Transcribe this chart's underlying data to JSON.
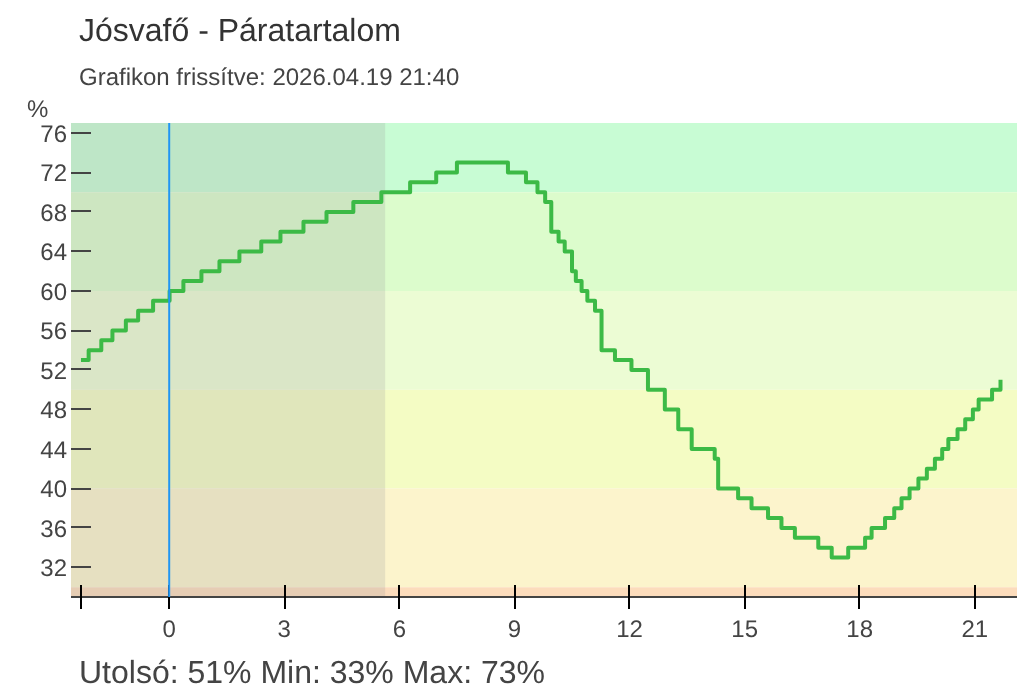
{
  "chart_data": {
    "type": "step",
    "title": "Jósvafő - Páratartalom",
    "subtitle": "Grafikon frissítve: 2026.04.19 21:40",
    "ylabel": "%",
    "annotations": [
      "Utolsó: 51%   Min: 33%   Max: 73%"
    ],
    "x": [
      -2.3,
      -2.1,
      -1.77,
      -1.48,
      -1.13,
      -0.81,
      -0.42,
      0.01,
      0.37,
      0.84,
      1.31,
      1.83,
      2.4,
      2.9,
      3.5,
      4.1,
      4.8,
      5.53,
      6.28,
      6.96,
      7.5,
      8.83,
      9.3,
      9.6,
      9.8,
      9.96,
      10.15,
      10.31,
      10.5,
      10.6,
      10.75,
      10.9,
      11.1,
      11.27,
      11.62,
      12.05,
      12.48,
      12.92,
      13.27,
      13.62,
      14.22,
      14.31,
      14.83,
      15.18,
      15.61,
      15.96,
      16.31,
      16.92,
      17.27,
      17.7,
      18.14,
      18.31,
      18.66,
      18.9,
      19.09,
      19.3,
      19.53,
      19.75,
      19.96,
      20.15,
      20.31,
      20.55,
      20.75,
      20.95,
      21.1,
      21.45,
      21.67
    ],
    "series": [
      {
        "color": "#3cba46",
        "values": [
          53,
          54,
          55,
          56,
          57,
          58,
          59,
          60,
          61,
          62,
          63,
          64,
          65,
          66,
          67,
          68,
          69,
          70,
          71,
          72,
          73,
          72,
          71,
          70,
          69,
          66,
          65,
          64,
          62,
          61,
          60,
          59,
          58,
          54,
          53,
          52,
          50,
          48,
          46,
          44,
          43,
          40,
          39,
          38,
          37,
          36,
          35,
          34,
          33,
          34,
          35,
          36,
          37,
          38,
          39,
          40,
          41,
          42,
          43,
          44,
          45,
          46,
          47,
          48,
          49,
          50,
          51
        ]
      }
    ],
    "xlim": [
      -2.56,
      22.1
    ],
    "ylim": [
      29,
      77
    ],
    "xticks": [
      {
        "value": -2.3,
        "label": null
      },
      0,
      3,
      6,
      9,
      12,
      15,
      18,
      21
    ],
    "yticks": [
      32,
      36,
      40,
      44,
      48,
      52,
      56,
      60,
      64,
      68,
      72,
      76
    ],
    "grid": false,
    "marker": "none",
    "line_style": "solid",
    "ref_lines": [
      {
        "axis": "x",
        "value": 0,
        "color": "#2196f3"
      }
    ],
    "bands": [
      {
        "axis": "y",
        "from": 70,
        "to": 77,
        "color": "#c8fcd4"
      },
      {
        "axis": "y",
        "from": 60,
        "to": 70,
        "color": "#dcfccc"
      },
      {
        "axis": "y",
        "from": 50,
        "to": 60,
        "color": "#ecfcd4"
      },
      {
        "axis": "y",
        "from": 40,
        "to": 50,
        "color": "#f4fcc4"
      },
      {
        "axis": "y",
        "from": 30,
        "to": 40,
        "color": "#fcf4cc"
      },
      {
        "axis": "y",
        "from": 29,
        "to": 30,
        "color": "#fcdcbc"
      },
      {
        "axis": "x",
        "from": -2.56,
        "to": 5.63,
        "color": "#9a9a9a"
      }
    ]
  }
}
